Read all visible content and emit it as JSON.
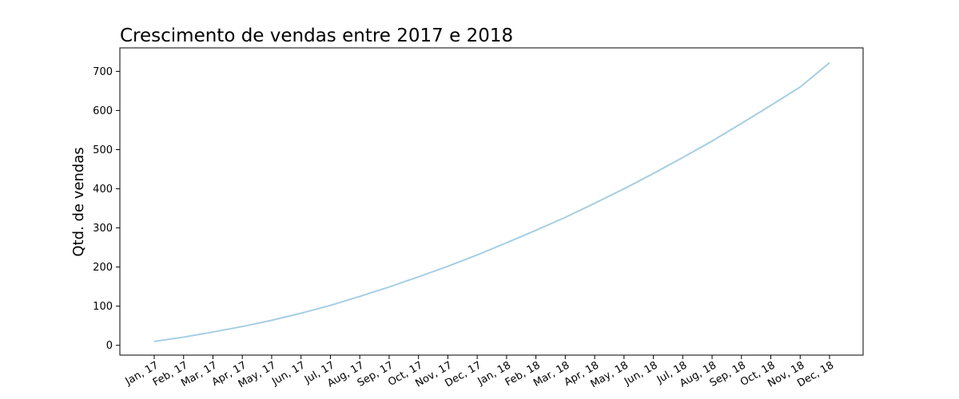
{
  "chart_data": {
    "type": "line",
    "title": "Crescimento de vendas entre 2017 e 2018",
    "xlabel": "",
    "ylabel": "Qtd. de vendas",
    "categories": [
      "Jan, 17",
      "Feb, 17",
      "Mar, 17",
      "Apr, 17",
      "May, 17",
      "Jun, 17",
      "Jul, 17",
      "Aug, 17",
      "Sep, 17",
      "Oct, 17",
      "Nov, 17",
      "Dec, 17",
      "Jan, 18",
      "Feb, 18",
      "Mar, 18",
      "Apr, 18",
      "May, 18",
      "Jun, 18",
      "Jul, 18",
      "Aug, 18",
      "Sep, 18",
      "Oct, 18",
      "Nov, 18",
      "Dec, 18"
    ],
    "series": [
      {
        "color": "#a6cee3",
        "values": [
          10,
          21,
          34,
          48,
          64,
          82,
          102,
          125,
          149,
          175,
          202,
          231,
          262,
          294,
          327,
          363,
          400,
          439,
          480,
          522,
          567,
          613,
          660,
          722
        ]
      }
    ],
    "yticks": [
      "0",
      "100",
      "200",
      "300",
      "400",
      "500",
      "600",
      "700"
    ],
    "ylim": [
      -25,
      760
    ],
    "grid": false,
    "legend": "none",
    "tick_label_rotation": 30
  }
}
